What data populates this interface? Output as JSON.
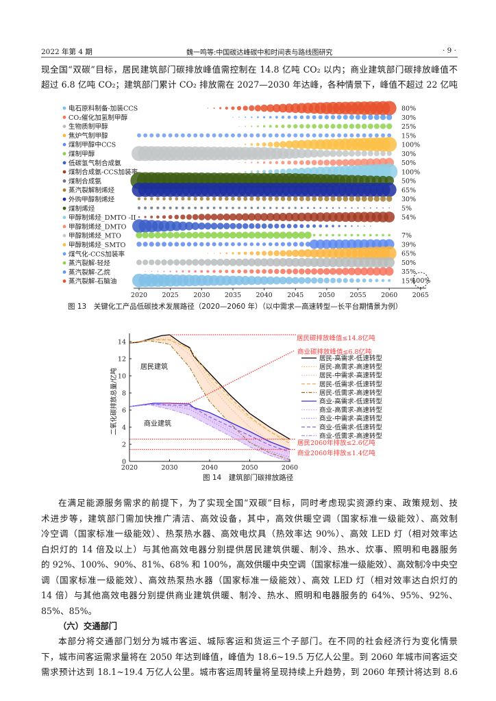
{
  "header": {
    "issue": "2022 年第 4 期",
    "running_title": "魏一鸣等:中国碳达峰碳中和时间表与路线图研究",
    "page_number": "· 9 ·"
  },
  "body": {
    "p1": [
      "现全国“双碳”目标，居民建筑部门碳排放峰值需控制在 14.8 亿吨 CO₂ 以内；商业建筑部门碳排放峰值不",
      "超过 6.8 亿吨 CO₂；建筑部门累计 CO₂ 排放需在 2027—2030 年达峰，各种情景下，峰值不超过 22 亿吨 CO₂。"
    ],
    "p2": [
      "在满足能源服务需求的前提下，为了实现全国“双碳”目标，同时考虑现实资源约束、政策规划、技",
      "术进步等，建筑部门需加快推广清洁、高效设备，其中，高效供暖空调（国家标准一级能效）、高效制",
      "冷空调（国家标准一级能效）、热泵热水器、高效电炊具（热效率达 90%）、高效 LED 灯（相对效率达",
      "白炽灯的 14 倍及以上）与其他高效电器分别提供居民建筑供暖、制冷、热水、炊事、照明和电器服务",
      "的 92%、100%、90%、81%、68% 和 100%，高效供暖中央空调（国家标准一级能效）、高效制冷中央空",
      "调（国家标准一级能效）、高效热泵热水器（国家标准一级能效）、高效 LED 灯（相对效率达白炽灯的",
      "14 倍）与其他高效电器分别提供商业建筑供暖、制冷、热水、照明和电器服务的 64%、95%、92%、",
      "85%、85%。"
    ],
    "section_heading": "（六）交通部门",
    "p3": [
      "本部分将交通部门划分为城市客运、城际客运和货运三个子部门。在不同的社会经济行为变化情景",
      "下，城市间客运需求量将在 2050 年达到峰值，峰值为 18.6~19.5 万亿人公里。到 2060 年城市间客运交通",
      "需求预计达到 18.1~19.4 万亿人公里。城市客运周转量将呈现持续上升趋势，到 2060 年预计将达到 8.6 万"
    ]
  },
  "chart_data": [
    {
      "type": "bubble",
      "caption": "图 13　关键化工产品低碳技术发展路径（2020—2060 年）（以中需求—高速转型—长平台期情景为例）",
      "x_ticks": [
        2020,
        2025,
        2030,
        2035,
        2040,
        2045,
        2050,
        2055,
        2060,
        2065
      ],
      "xlim": [
        2020,
        2065
      ],
      "legend": [
        {
          "name": "电石原料制备-加装CCS",
          "color": "#7fbfe8"
        },
        {
          "name": "CO₂催化加氢制甲醇",
          "color": "#f7735a"
        },
        {
          "name": "生物质制甲醇",
          "color": "#b8bcbc"
        },
        {
          "name": "焦炉气制甲醇",
          "color": "#fbb540"
        },
        {
          "name": "煤制甲醇中CCS",
          "color": "#5d8af0"
        },
        {
          "name": "煤制甲醇",
          "color": "#88d146"
        },
        {
          "name": "低碳氢气制合成氨",
          "color": "#3a5ec9"
        },
        {
          "name": "煤制合成氨-CCS加装率",
          "color": "#a33a22"
        },
        {
          "name": "煤制合成氨",
          "color": "#6b6f80"
        },
        {
          "name": "蒸汽裂解制烯烃",
          "color": "#a67c2e"
        },
        {
          "name": "外购甲醇制烯烃",
          "color": "#1d2fa0"
        },
        {
          "name": "煤制烯烃",
          "color": "#3d5e14"
        },
        {
          "name": "甲醇制烯烃_DMTO -II",
          "color": "#8ecfe6"
        },
        {
          "name": "甲醇制烯烃_DMTO",
          "color": "#f88b73"
        },
        {
          "name": "甲醇制烯烃_MTO",
          "color": "#c3c7c7"
        },
        {
          "name": "甲醇制烯烃_SMTO",
          "color": "#fbbf45"
        },
        {
          "name": "煤气化-CCS加装率",
          "color": "#6c9ef0"
        },
        {
          "name": "蒸汽裂解-轻烃",
          "color": "#8fd14f"
        },
        {
          "name": "蒸汽裂解-乙烷",
          "color": "#5b9bef"
        },
        {
          "name": "蒸汽裂解-石脑油",
          "color": "#e8502a"
        }
      ],
      "rows": [
        {
          "color": "#e8502a",
          "label": "80%",
          "size_profile": [
            [
              2031,
              0.05
            ],
            [
              2040,
              0.5
            ],
            [
              2050,
              0.85
            ],
            [
              2060,
              1.0
            ]
          ]
        },
        {
          "color": "#5b9bef",
          "label": "30%",
          "size_profile": [
            [
              2035,
              0.05
            ],
            [
              2045,
              0.25
            ],
            [
              2060,
              0.4
            ]
          ]
        },
        {
          "color": "#8fd14f",
          "label": "25%",
          "size_profile": [
            [
              2036,
              0.05
            ],
            [
              2045,
              0.3
            ],
            [
              2060,
              0.4
            ]
          ]
        },
        {
          "color": "#6c9ef0",
          "label": "15%",
          "size_profile": [
            [
              2020,
              0.28
            ],
            [
              2060,
              0.28
            ]
          ]
        },
        {
          "color": "#fbbf45",
          "label": "100%",
          "size_profile": [
            [
              2036,
              0.05
            ],
            [
              2045,
              0.6
            ],
            [
              2060,
              1.05
            ]
          ]
        },
        {
          "color": "#c3c7c7",
          "label": "30%",
          "size_profile": [
            [
              2020,
              1.05
            ],
            [
              2040,
              0.9
            ],
            [
              2050,
              0.5
            ],
            [
              2060,
              0.35
            ]
          ]
        },
        {
          "color": "#f88b73",
          "label": "50%",
          "size_profile": [
            [
              2036,
              0.05
            ],
            [
              2045,
              0.3
            ],
            [
              2060,
              0.65
            ]
          ]
        },
        {
          "color": "#8ecfe6",
          "label": "100%",
          "size_profile": [
            [
              2036,
              0.05
            ],
            [
              2045,
              0.5
            ],
            [
              2060,
              1.15
            ]
          ]
        },
        {
          "color": "#3d5e14",
          "label": "50%",
          "size_profile": [
            [
              2020,
              1.2
            ],
            [
              2045,
              1.05
            ],
            [
              2060,
              0.65
            ]
          ]
        },
        {
          "color": "#1d2fa0",
          "label": "65%",
          "size_profile": [
            [
              2020,
              1.0
            ],
            [
              2060,
              1.0
            ]
          ]
        },
        {
          "color": "#a67c2e",
          "label": "30%",
          "size_profile": [
            [
              2020,
              0.2
            ],
            [
              2060,
              0.4
            ]
          ]
        },
        {
          "color": "#6b6f80",
          "label": "5%",
          "size_profile": [
            [
              2020,
              0.2
            ],
            [
              2045,
              0.15
            ],
            [
              2060,
              0.08
            ]
          ]
        },
        {
          "color": "#a33a22",
          "label": "54%",
          "size_profile": [
            [
              2020,
              0.12
            ],
            [
              2030,
              0.45
            ],
            [
              2060,
              0.75
            ]
          ]
        },
        {
          "color": "#3a5ec9",
          "label": "",
          "size_profile": [
            [
              2020,
              0.95
            ],
            [
              2030,
              0.5
            ],
            [
              2045,
              0.3
            ],
            [
              2057,
              0.05
            ],
            [
              2058,
              0
            ]
          ]
        },
        {
          "color": "#88d146",
          "label": "7%",
          "size_profile": [
            [
              2020,
              0.45
            ],
            [
              2047,
              0.5
            ],
            [
              2048,
              0.18
            ],
            [
              2060,
              0.18
            ]
          ]
        },
        {
          "color": "#5d8af0",
          "label": "39%",
          "size_profile": [
            [
              2020,
              0.35
            ],
            [
              2040,
              0.25
            ],
            [
              2047,
              0.35
            ],
            [
              2048,
              0.65
            ],
            [
              2060,
              0.7
            ]
          ]
        },
        {
          "color": "#fbb540",
          "label": "65%",
          "size_profile": [
            [
              2031,
              0.03
            ],
            [
              2045,
              0.5
            ],
            [
              2060,
              1.0
            ]
          ]
        },
        {
          "color": "#b8bcbc",
          "label": "50%",
          "size_profile": [
            [
              2020,
              0.38
            ],
            [
              2060,
              0.75
            ]
          ]
        },
        {
          "color": "#f7735a",
          "label": "35%",
          "size_profile": [
            [
              2021,
              0.05
            ],
            [
              2045,
              0.4
            ],
            [
              2060,
              0.6
            ]
          ]
        },
        {
          "color": "#7fbfe8",
          "label": "15%",
          "size_profile": [
            [
              2020,
              0.95
            ],
            [
              2045,
              0.5
            ],
            [
              2060,
              0.2
            ]
          ]
        }
      ],
      "reference_marker": {
        "x": 2065,
        "label": "100%"
      }
    },
    {
      "type": "line",
      "caption": "图 14　建筑部门碳排放路径",
      "ylabel": "二氧化碳排放总量/亿吨",
      "xlim": [
        2020,
        2060
      ],
      "ylim": [
        0,
        15
      ],
      "x_ticks": [
        2020,
        2030,
        2040,
        2050,
        2060
      ],
      "y_ticks": [
        0,
        2,
        4,
        6,
        8,
        10,
        12,
        14
      ],
      "region_labels": {
        "residential": "居民建筑",
        "commercial": "商业建筑"
      },
      "band_colors": {
        "residential": "#fde3cc",
        "commercial": "#e2c9fa"
      },
      "series": [
        {
          "name": "居民-高需求-低速转型",
          "color": "#000000",
          "dash": "solid",
          "x": [
            2020,
            2022,
            2025,
            2028,
            2030,
            2033,
            2035,
            2036,
            2038,
            2040,
            2045,
            2050,
            2055,
            2060
          ],
          "y": [
            13.85,
            13.9,
            14.3,
            14.7,
            14.8,
            13.8,
            13.3,
            12.3,
            11.3,
            10.3,
            7.8,
            5.6,
            4.0,
            2.6
          ]
        },
        {
          "name": "居民-高需求-高速转型",
          "color": "#f2c14a",
          "dash": "dot",
          "x": [
            2020,
            2025,
            2030,
            2035,
            2040,
            2045,
            2050,
            2055,
            2060
          ],
          "y": [
            13.85,
            14.2,
            14.5,
            13.0,
            9.5,
            7.0,
            5.0,
            3.5,
            2.4
          ]
        },
        {
          "name": "居民-中需求-高速转型",
          "color": "#f6aea0",
          "dash": "dot",
          "x": [
            2020,
            2025,
            2030,
            2035,
            2040,
            2045,
            2050,
            2055,
            2060
          ],
          "y": [
            13.85,
            14.2,
            14.3,
            12.5,
            9.0,
            6.3,
            4.0,
            2.4,
            1.2
          ]
        },
        {
          "name": "居民-低需求-低速转型",
          "color": "#e8a040",
          "dash": "dash",
          "x": [
            2020,
            2025,
            2030,
            2035,
            2040,
            2045,
            2050,
            2055,
            2060
          ],
          "y": [
            13.85,
            14.2,
            14.2,
            13.2,
            10.0,
            7.5,
            5.2,
            3.5,
            2.1
          ]
        },
        {
          "name": "居民-低需求-高速转型",
          "color": "#9a6a1a",
          "dash": "dashdot",
          "x": [
            2020,
            2025,
            2030,
            2035,
            2038,
            2040,
            2045,
            2050,
            2055,
            2060
          ],
          "y": [
            13.8,
            14.1,
            13.7,
            11.0,
            8.5,
            7.0,
            4.5,
            2.2,
            1.0,
            0.2
          ]
        },
        {
          "name": "商业-高需求-低速转型",
          "color": "#3a2fe0",
          "dash": "solid",
          "x": [
            2020,
            2026,
            2030,
            2035,
            2036,
            2040,
            2045,
            2050,
            2055,
            2060
          ],
          "y": [
            6.4,
            6.8,
            6.8,
            6.7,
            6.3,
            5.7,
            4.6,
            3.5,
            2.3,
            1.4
          ]
        },
        {
          "name": "商业-高需求-高速转型",
          "color": "#e0a0f0",
          "dash": "dot",
          "x": [
            2020,
            2025,
            2030,
            2035,
            2040,
            2045,
            2050,
            2055,
            2060
          ],
          "y": [
            6.4,
            6.7,
            6.6,
            6.3,
            5.0,
            3.8,
            2.6,
            1.6,
            0.9
          ]
        },
        {
          "name": "商业-中需求-高速转型",
          "color": "#a080f0",
          "dash": "dot",
          "x": [
            2020,
            2025,
            2030,
            2035,
            2040,
            2045,
            2050,
            2055,
            2060
          ],
          "y": [
            6.4,
            6.7,
            6.5,
            6.1,
            4.8,
            3.5,
            2.3,
            1.2,
            0.5
          ]
        },
        {
          "name": "商业-低需求-低速转型",
          "color": "#7a50e0",
          "dash": "dash",
          "x": [
            2020,
            2025,
            2030,
            2035,
            2040,
            2045,
            2050,
            2055,
            2060
          ],
          "y": [
            6.4,
            6.7,
            6.6,
            6.5,
            5.2,
            4.1,
            3.0,
            1.9,
            1.1
          ]
        },
        {
          "name": "商业-低需求-高速转型",
          "color": "#b090f0",
          "dash": "dashdot",
          "x": [
            2020,
            2025,
            2030,
            2035,
            2040,
            2045,
            2050,
            2055,
            2060
          ],
          "y": [
            6.4,
            6.6,
            6.1,
            5.4,
            4.2,
            3.0,
            1.7,
            0.7,
            0.0
          ]
        }
      ],
      "reference_lines": [
        {
          "label": "居民碳排放峰值≤14.8亿吨",
          "y": 14.8,
          "x_from": 2030,
          "color": "#ff3b3b"
        },
        {
          "label": "商业碳排放峰值≤6.8亿吨",
          "y": 6.8,
          "x_from": 2028,
          "x_to": 2035,
          "color": "#ff3b3b"
        },
        {
          "label": "居民2060年排放≤2.6亿吨",
          "y": 2.6,
          "x_from": 2020,
          "color": "#ff3b3b"
        },
        {
          "label": "商业2060年排放≤1.4亿吨",
          "y": 1.4,
          "x_from": 2020,
          "color": "#ff3b3b"
        }
      ]
    }
  ]
}
